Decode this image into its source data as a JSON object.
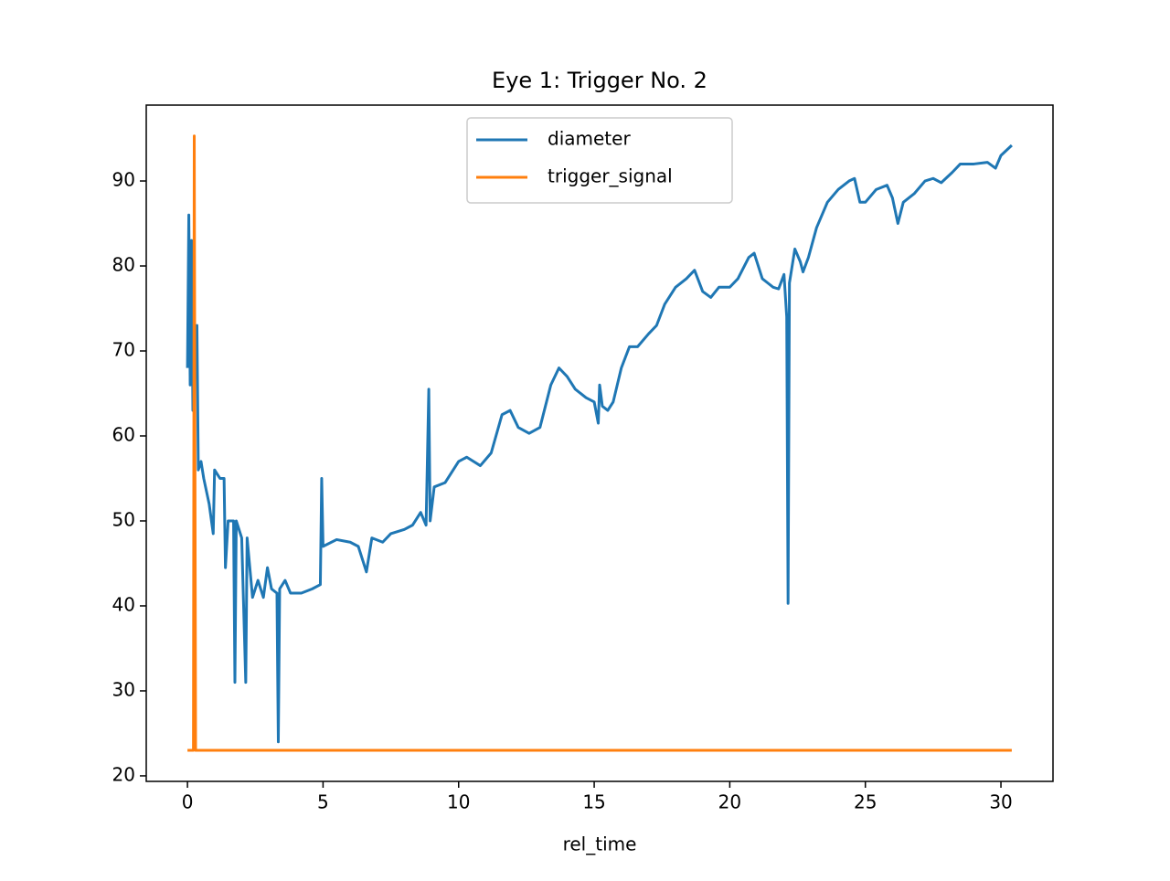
{
  "chart_data": {
    "type": "line",
    "title": "Eye 1: Trigger No. 2",
    "x_label": "rel_time",
    "xlim": [
      -1.52,
      31.92
    ],
    "xticks": [
      0,
      5,
      10,
      15,
      20,
      25,
      30
    ],
    "ylim": [
      19.35,
      98.93
    ],
    "yticks": [
      20,
      30,
      40,
      50,
      60,
      70,
      80,
      90
    ],
    "legend": "upper center",
    "grid": false,
    "series": [
      {
        "name": "diameter",
        "color": "#1f77b4",
        "x": [
          0,
          0.05,
          0.1,
          0.15,
          0.2,
          0.3,
          0.35,
          0.4,
          0.5,
          0.6,
          0.8,
          0.95,
          1.0,
          1.2,
          1.35,
          1.4,
          1.5,
          1.7,
          1.75,
          1.8,
          2.0,
          2.15,
          2.2,
          2.4,
          2.6,
          2.8,
          2.95,
          3.1,
          3.3,
          3.35,
          3.4,
          3.6,
          3.8,
          4.2,
          4.6,
          4.9,
          4.95,
          5.0,
          5.5,
          6.0,
          6.3,
          6.6,
          6.8,
          7.2,
          7.5,
          8.0,
          8.3,
          8.6,
          8.8,
          8.9,
          8.95,
          9.1,
          9.5,
          10.0,
          10.3,
          10.8,
          11.2,
          11.6,
          11.9,
          12.2,
          12.6,
          13.0,
          13.4,
          13.7,
          14.0,
          14.3,
          14.7,
          15.0,
          15.15,
          15.2,
          15.3,
          15.5,
          15.7,
          16.0,
          16.3,
          16.6,
          17.0,
          17.3,
          17.6,
          18.0,
          18.4,
          18.7,
          19.0,
          19.3,
          19.6,
          20.0,
          20.3,
          20.7,
          20.9,
          21.2,
          21.4,
          21.6,
          21.8,
          22.0,
          22.1,
          22.15,
          22.2,
          22.4,
          22.6,
          22.7,
          22.9,
          23.2,
          23.6,
          24.0,
          24.4,
          24.6,
          24.8,
          25.0,
          25.4,
          25.8,
          26.0,
          26.2,
          26.4,
          26.8,
          27.2,
          27.5,
          27.8,
          28.2,
          28.5,
          29.0,
          29.5,
          29.8,
          30.0,
          30.4
        ],
        "values": [
          68,
          86,
          66,
          83,
          63,
          70,
          73,
          56,
          57,
          55,
          52,
          48.5,
          56,
          55,
          55,
          44.5,
          50,
          50,
          31,
          50,
          48,
          31,
          48,
          41,
          43,
          41,
          44.5,
          42,
          41.5,
          24,
          42,
          43,
          41.5,
          41.5,
          42,
          42.5,
          55,
          47,
          47.8,
          47.5,
          47,
          44,
          48,
          47.5,
          48.5,
          49,
          49.5,
          51,
          49.5,
          65.5,
          50,
          54,
          54.5,
          57,
          57.5,
          56.5,
          58,
          62.5,
          63,
          61,
          60.3,
          61,
          66,
          68,
          67,
          65.5,
          64.5,
          64,
          61.5,
          66,
          63.5,
          63,
          64,
          68,
          70.5,
          70.5,
          72,
          73,
          75.5,
          77.5,
          78.5,
          79.5,
          77,
          76.3,
          77.5,
          77.5,
          78.5,
          81,
          81.5,
          78.5,
          78,
          77.5,
          77.3,
          79,
          74,
          40.3,
          78,
          82,
          80.5,
          79.3,
          81,
          84.5,
          87.5,
          89,
          90,
          90.3,
          87.5,
          87.5,
          89,
          89.5,
          88,
          85,
          87.5,
          88.5,
          90,
          90.3,
          89.8,
          91,
          92,
          92,
          92.2,
          91.5,
          93,
          94.2
        ]
      },
      {
        "name": "trigger_signal",
        "color": "#ff7f0e",
        "x": [
          0,
          0.22,
          0.25,
          0.3,
          30.4
        ],
        "values": [
          23,
          23,
          95.3,
          23,
          23
        ]
      }
    ]
  }
}
